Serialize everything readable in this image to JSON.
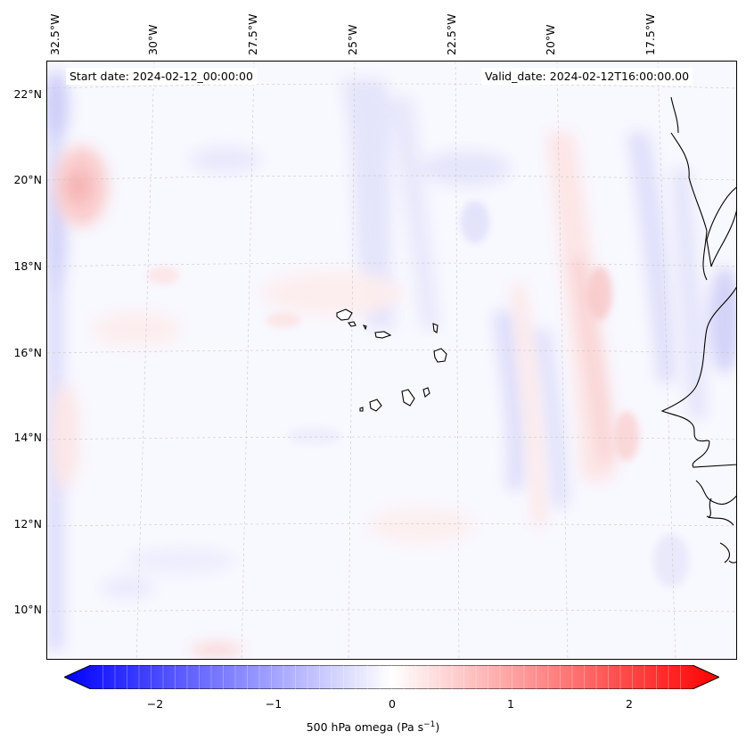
{
  "header": {
    "start_date": "Start date: 2024-02-12_00:00:00",
    "valid_date": "Valid_date: 2024-02-12T16:00:00.00"
  },
  "axes": {
    "lat_labels": [
      "22°N",
      "20°N",
      "18°N",
      "16°N",
      "14°N",
      "12°N",
      "10°N"
    ],
    "lon_labels": [
      "32.5°W",
      "30°W",
      "27.5°W",
      "25°W",
      "22.5°W",
      "20°W",
      "17.5°W"
    ]
  },
  "colorbar": {
    "tick_labels": [
      "−2",
      "−1",
      "0",
      "1",
      "2"
    ],
    "title": "500 hPa omega (Pa s",
    "title_sup": "−1",
    "title_end": ")",
    "colormap": "bwr",
    "min": -2.6,
    "max": 2.6,
    "extend": "both"
  },
  "field_colors": {
    "negative": "#0000ff",
    "neutral": "#ffffff",
    "positive": "#ff0000"
  }
}
